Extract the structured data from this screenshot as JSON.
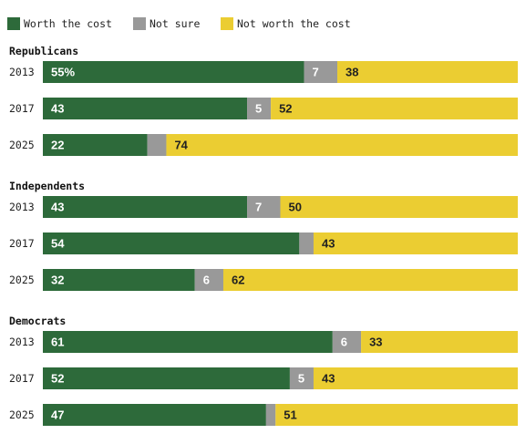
{
  "chart_data": {
    "type": "bar",
    "orientation": "horizontal",
    "stacked": true,
    "legend": [
      {
        "key": "worth",
        "label": "Worth the cost",
        "color": "#2d6a3a"
      },
      {
        "key": "not_sure",
        "label": "Not sure",
        "color": "#999999"
      },
      {
        "key": "not_worth",
        "label": "Not worth the cost",
        "color": "#ebcd32"
      }
    ],
    "label_colors": {
      "worth": "#ffffff",
      "not_sure": "#ffffff",
      "not_worth": "#222222"
    },
    "xlim": [
      0,
      100
    ],
    "legend_position": "top-left",
    "grid": false,
    "groups": [
      {
        "name": "Republicans",
        "rows": [
          {
            "year": "2013",
            "worth": 55,
            "not_sure": 7,
            "not_worth": 38,
            "labels": {
              "worth": "55%",
              "not_sure": "7",
              "not_worth": "38"
            }
          },
          {
            "year": "2017",
            "worth": 43,
            "not_sure": 5,
            "not_worth": 52,
            "labels": {
              "worth": "43",
              "not_sure": "5",
              "not_worth": "52"
            }
          },
          {
            "year": "2025",
            "worth": 22,
            "not_sure": 4,
            "not_worth": 74,
            "labels": {
              "worth": "22",
              "not_sure": "",
              "not_worth": "74"
            }
          }
        ]
      },
      {
        "name": "Independents",
        "rows": [
          {
            "year": "2013",
            "worth": 43,
            "not_sure": 7,
            "not_worth": 50,
            "labels": {
              "worth": "43",
              "not_sure": "7",
              "not_worth": "50"
            }
          },
          {
            "year": "2017",
            "worth": 54,
            "not_sure": 3,
            "not_worth": 43,
            "labels": {
              "worth": "54",
              "not_sure": "",
              "not_worth": "43"
            }
          },
          {
            "year": "2025",
            "worth": 32,
            "not_sure": 6,
            "not_worth": 62,
            "labels": {
              "worth": "32",
              "not_sure": "6",
              "not_worth": "62"
            }
          }
        ]
      },
      {
        "name": "Democrats",
        "rows": [
          {
            "year": "2013",
            "worth": 61,
            "not_sure": 6,
            "not_worth": 33,
            "labels": {
              "worth": "61",
              "not_sure": "6",
              "not_worth": "33"
            }
          },
          {
            "year": "2017",
            "worth": 52,
            "not_sure": 5,
            "not_worth": 43,
            "labels": {
              "worth": "52",
              "not_sure": "5",
              "not_worth": "43"
            }
          },
          {
            "year": "2025",
            "worth": 47,
            "not_sure": 2,
            "not_worth": 51,
            "labels": {
              "worth": "47",
              "not_sure": "",
              "not_worth": "51"
            }
          }
        ]
      }
    ]
  }
}
